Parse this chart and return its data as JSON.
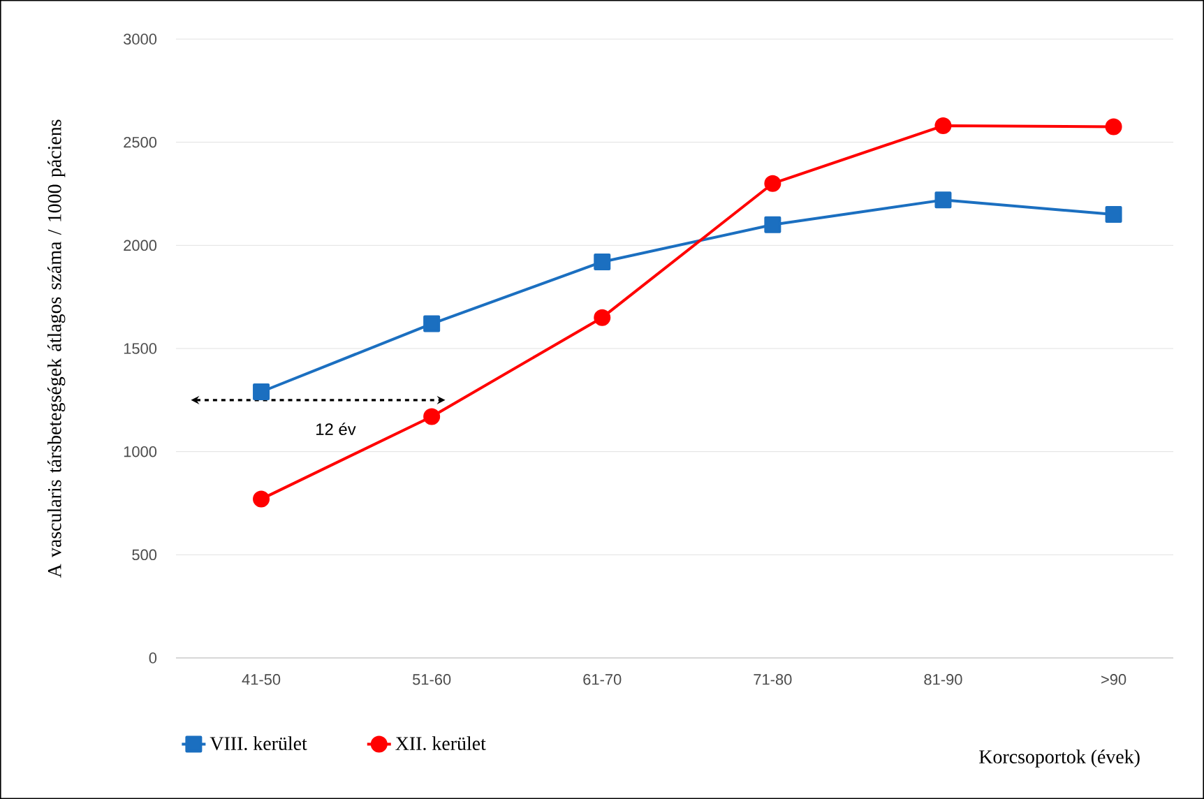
{
  "chart_data": {
    "type": "line",
    "ylabel": "A vascularis társbetegségek átlagos száma / 1000 páciens",
    "xlabel": "Korcsoportok (évek)",
    "categories": [
      "41-50",
      "51-60",
      "61-70",
      "71-80",
      "81-90",
      ">90"
    ],
    "series": [
      {
        "name": "VIII. kerület",
        "color": "#1b6fc0",
        "marker": "square",
        "values": [
          1290,
          1620,
          1920,
          2100,
          2220,
          2150
        ]
      },
      {
        "name": "XII. kerület",
        "color": "#ff0000",
        "marker": "circle",
        "values": [
          770,
          1170,
          1650,
          2300,
          2580,
          2575
        ]
      }
    ],
    "ylim": [
      0,
      3000
    ],
    "yticks": [
      0,
      500,
      1000,
      1500,
      2000,
      2500,
      3000
    ],
    "grid": "y",
    "legend": "bottom left",
    "line_style": "solid",
    "annotations": [
      "12 év"
    ]
  }
}
